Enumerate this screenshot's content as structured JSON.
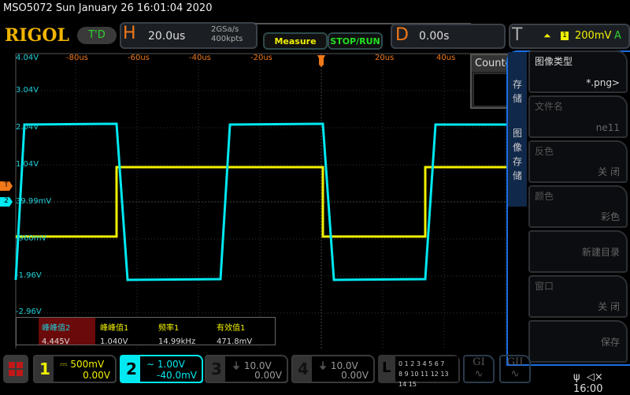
{
  "header": {
    "title": "MSO5072  Sun January 26 16:01:04 2020",
    "logo": "RIGOL",
    "td": "T'D"
  },
  "horizontal": {
    "label": "H",
    "timebase": "20.0us",
    "sample_rate": "2GSa/s",
    "memory": "400kpts"
  },
  "buttons": {
    "measure": "Measure",
    "stop_run": "STOP/RUN"
  },
  "delay": {
    "label": "D",
    "value": "0.00s"
  },
  "trigger": {
    "label": "T",
    "edge_icon": "rising-edge-icon",
    "source": "1",
    "level": "200mV",
    "mode": "A",
    "marker": "T"
  },
  "axis": {
    "v_labels": [
      "4.04V",
      "3.04V",
      "2.04V",
      "1.04V",
      "39.99mV",
      "-960mV",
      "-1.96V",
      "-2.96V"
    ],
    "h_labels": [
      "-80us",
      "-60us",
      "-40us",
      "-20us",
      "20us",
      "40us"
    ]
  },
  "markers": {
    "trig_level": "T",
    "ch2_offset": "2"
  },
  "counter": {
    "title": "Counter"
  },
  "measurements": [
    {
      "name": "峰峰值2",
      "value": "4.445V"
    },
    {
      "name": "峰峰值1",
      "value": "1.040V"
    },
    {
      "name": "频率1",
      "value": "14.99kHz"
    },
    {
      "name": "有效值1",
      "value": "471.8mV"
    }
  ],
  "menu": {
    "tab1": "存储",
    "tab2": "图像存储",
    "items": [
      {
        "label": "图像类型",
        "value": "*.png>"
      },
      {
        "label": "文件名",
        "value": "ne11"
      },
      {
        "label": "反色",
        "value": "关 闭"
      },
      {
        "label": "颜色",
        "value": "彩色"
      },
      {
        "label": "",
        "value": "新建目录"
      },
      {
        "label": "窗口",
        "value": "关 闭"
      },
      {
        "label": "",
        "value": "保存"
      }
    ]
  },
  "channels": [
    {
      "num": "1",
      "scale": "500mV",
      "offset": "0.00V",
      "coupling": "DC",
      "color": "#f0f000"
    },
    {
      "num": "2",
      "scale": "1.00V",
      "offset": "-40.0mV",
      "coupling": "AC",
      "color": "#00e8f0"
    },
    {
      "num": "3",
      "scale": "10.0V",
      "offset": "0.00V",
      "coupling": "GND",
      "color": "#888888"
    },
    {
      "num": "4",
      "scale": "10.0V",
      "offset": "0.00V",
      "coupling": "GND",
      "color": "#888888"
    }
  ],
  "logic": {
    "label": "L",
    "row1": "0 1 2 3  4 5 6 7",
    "row2": "8 9 10 11 12 13 14 15"
  },
  "generators": [
    "GI",
    "GII"
  ],
  "status": {
    "time": "16:00",
    "usb_icon": "usb-icon",
    "mute_icon": "speaker-mute-icon"
  }
}
